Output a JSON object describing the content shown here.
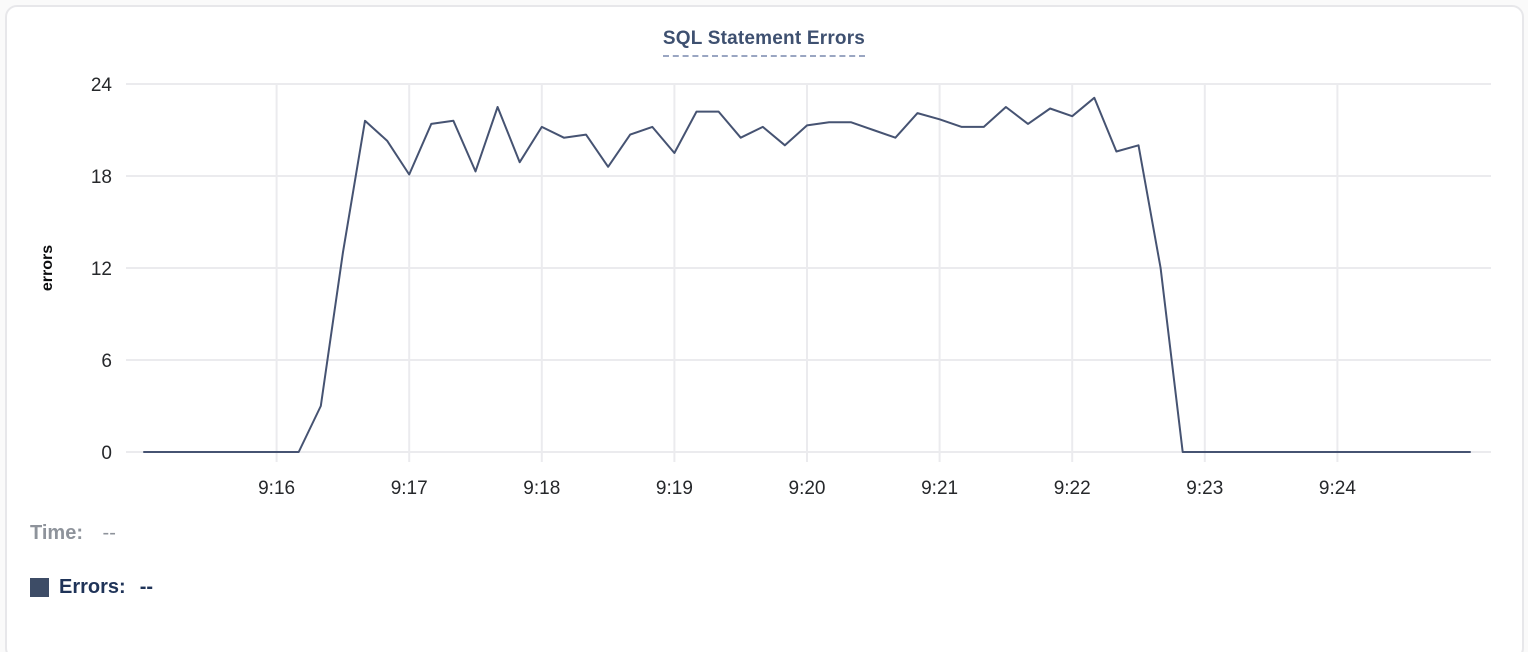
{
  "card": {
    "title": "SQL Statement Errors"
  },
  "legend": {
    "time_label": "Time:",
    "time_value": "--",
    "errors_label": "Errors:",
    "errors_value": "--",
    "swatch_icon": "errors-series-swatch"
  },
  "colors": {
    "line": "#465372",
    "swatch": "#3d4c66",
    "title": "#3e5070",
    "grid": "#ebebee",
    "tick_text": "#26282b",
    "axis_label": "#0c0d0e",
    "time_label": "#8e939b",
    "errors_label": "#1f3358"
  },
  "chart_data": {
    "type": "line",
    "title": "SQL Statement Errors",
    "xlabel": "",
    "ylabel": "errors",
    "ylim": [
      0,
      24
    ],
    "yticks": [
      0,
      6,
      12,
      18,
      24
    ],
    "xticks": [
      "9:16",
      "9:17",
      "9:18",
      "9:19",
      "9:20",
      "9:21",
      "9:22",
      "9:23",
      "9:24"
    ],
    "x_range": [
      "9:15:00",
      "9:25:00"
    ],
    "grid": true,
    "legend_position": "bottom-left",
    "series": [
      {
        "name": "Errors",
        "points": [
          [
            "9:15:00",
            0
          ],
          [
            "9:15:10",
            0
          ],
          [
            "9:15:20",
            0
          ],
          [
            "9:15:30",
            0
          ],
          [
            "9:15:40",
            0
          ],
          [
            "9:15:50",
            0
          ],
          [
            "9:16:00",
            0
          ],
          [
            "9:16:10",
            0
          ],
          [
            "9:16:20",
            3
          ],
          [
            "9:16:30",
            13
          ],
          [
            "9:16:40",
            21.6
          ],
          [
            "9:16:50",
            20.3
          ],
          [
            "9:17:00",
            18.1
          ],
          [
            "9:17:10",
            21.4
          ],
          [
            "9:17:20",
            21.6
          ],
          [
            "9:17:30",
            18.3
          ],
          [
            "9:17:40",
            22.5
          ],
          [
            "9:17:50",
            18.9
          ],
          [
            "9:18:00",
            21.2
          ],
          [
            "9:18:10",
            20.5
          ],
          [
            "9:18:20",
            20.7
          ],
          [
            "9:18:30",
            18.6
          ],
          [
            "9:18:40",
            20.7
          ],
          [
            "9:18:50",
            21.2
          ],
          [
            "9:19:00",
            19.5
          ],
          [
            "9:19:10",
            22.2
          ],
          [
            "9:19:20",
            22.2
          ],
          [
            "9:19:30",
            20.5
          ],
          [
            "9:19:40",
            21.2
          ],
          [
            "9:19:50",
            20.0
          ],
          [
            "9:20:00",
            21.3
          ],
          [
            "9:20:10",
            21.5
          ],
          [
            "9:20:20",
            21.5
          ],
          [
            "9:20:30",
            21.0
          ],
          [
            "9:20:40",
            20.5
          ],
          [
            "9:20:50",
            22.1
          ],
          [
            "9:21:00",
            21.7
          ],
          [
            "9:21:10",
            21.2
          ],
          [
            "9:21:20",
            21.2
          ],
          [
            "9:21:30",
            22.5
          ],
          [
            "9:21:40",
            21.4
          ],
          [
            "9:21:50",
            22.4
          ],
          [
            "9:22:00",
            21.9
          ],
          [
            "9:22:10",
            23.1
          ],
          [
            "9:22:20",
            19.6
          ],
          [
            "9:22:30",
            20.0
          ],
          [
            "9:22:40",
            12
          ],
          [
            "9:22:50",
            0
          ],
          [
            "9:23:00",
            0
          ],
          [
            "9:23:10",
            0
          ],
          [
            "9:23:20",
            0
          ],
          [
            "9:23:30",
            0
          ],
          [
            "9:23:40",
            0
          ],
          [
            "9:23:50",
            0
          ],
          [
            "9:24:00",
            0
          ],
          [
            "9:24:10",
            0
          ],
          [
            "9:24:20",
            0
          ],
          [
            "9:24:30",
            0
          ],
          [
            "9:24:40",
            0
          ],
          [
            "9:24:50",
            0
          ],
          [
            "9:25:00",
            0
          ]
        ]
      }
    ]
  }
}
